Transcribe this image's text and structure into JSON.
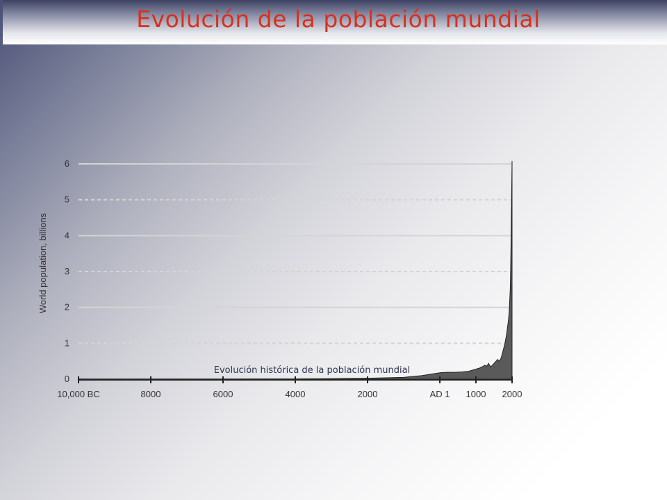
{
  "header": {
    "title": "Evolución de la población mundial"
  },
  "chart_data": {
    "type": "area",
    "title": "",
    "xlabel": "",
    "ylabel": "World population, billions",
    "caption": "Evolución histórica de la población mundial",
    "xlim": [
      -10000,
      2000
    ],
    "ylim": [
      0,
      6
    ],
    "yticks": [
      {
        "value": 0,
        "label": "0"
      },
      {
        "value": 1,
        "label": "1"
      },
      {
        "value": 2,
        "label": "2"
      },
      {
        "value": 3,
        "label": "3"
      },
      {
        "value": 4,
        "label": "4"
      },
      {
        "value": 5,
        "label": "5"
      },
      {
        "value": 6,
        "label": "6"
      }
    ],
    "xticks": [
      {
        "value": -10000,
        "label": "10,000 BC"
      },
      {
        "value": -8000,
        "label": "8000"
      },
      {
        "value": -6000,
        "label": "6000"
      },
      {
        "value": -4000,
        "label": "4000"
      },
      {
        "value": -2000,
        "label": "2000"
      },
      {
        "value": 1,
        "label": "AD 1"
      },
      {
        "value": 1000,
        "label": "1000"
      },
      {
        "value": 2000,
        "label": "2000"
      }
    ],
    "grid": {
      "solid": [
        2,
        4,
        6
      ],
      "dashed": [
        1,
        3,
        5
      ]
    },
    "series": [
      {
        "x": [
          -10000,
          -8000,
          -6000,
          -4000,
          -3000,
          -2000,
          -1000,
          -500,
          1,
          200,
          400,
          600,
          800,
          1000,
          1100,
          1200,
          1250,
          1300,
          1350,
          1400,
          1450,
          1500,
          1600,
          1650,
          1700,
          1750,
          1800,
          1850,
          1900,
          1920,
          1940,
          1950,
          1960,
          1970,
          1980,
          1990,
          2000
        ],
        "y": [
          0.004,
          0.005,
          0.006,
          0.008,
          0.014,
          0.027,
          0.05,
          0.1,
          0.18,
          0.19,
          0.19,
          0.2,
          0.22,
          0.28,
          0.31,
          0.36,
          0.39,
          0.36,
          0.44,
          0.35,
          0.38,
          0.44,
          0.55,
          0.5,
          0.6,
          0.79,
          0.98,
          1.26,
          1.65,
          1.86,
          2.3,
          2.52,
          3.02,
          3.7,
          4.44,
          5.27,
          6.08
        ]
      }
    ]
  }
}
